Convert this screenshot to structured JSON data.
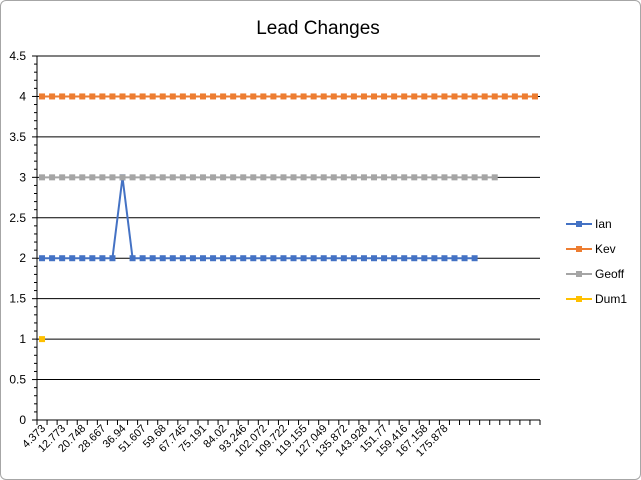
{
  "chart_data": {
    "type": "line",
    "title": "Lead Changes",
    "xlabel": "",
    "ylabel": "",
    "ylim": [
      0,
      4.5
    ],
    "yticks": [
      "0",
      "0.5",
      "1",
      "1.5",
      "2",
      "2.5",
      "3",
      "3.5",
      "4",
      "4.5"
    ],
    "grid": true,
    "legend_position": "right",
    "category_count": 50,
    "x_tick_labels": [
      {
        "index": 0,
        "label": "4.373"
      },
      {
        "index": 2,
        "label": "12.773"
      },
      {
        "index": 4,
        "label": "20.748"
      },
      {
        "index": 6,
        "label": "28.667"
      },
      {
        "index": 8,
        "label": "36.94"
      },
      {
        "index": 10,
        "label": "51.607"
      },
      {
        "index": 12,
        "label": "59.68"
      },
      {
        "index": 14,
        "label": "67.745"
      },
      {
        "index": 16,
        "label": "75.191"
      },
      {
        "index": 18,
        "label": "84.02"
      },
      {
        "index": 20,
        "label": "93.246"
      },
      {
        "index": 22,
        "label": "102.072"
      },
      {
        "index": 24,
        "label": "109.722"
      },
      {
        "index": 26,
        "label": "119.155"
      },
      {
        "index": 28,
        "label": "127.049"
      },
      {
        "index": 30,
        "label": "135.872"
      },
      {
        "index": 32,
        "label": "143.928"
      },
      {
        "index": 34,
        "label": "151.77"
      },
      {
        "index": 36,
        "label": "159.416"
      },
      {
        "index": 38,
        "label": "167.158"
      },
      {
        "index": 40,
        "label": "175.878"
      }
    ],
    "series": [
      {
        "name": "Ian",
        "color": "#4472c4",
        "values": [
          2,
          2,
          2,
          2,
          2,
          2,
          2,
          2,
          3,
          2,
          2,
          2,
          2,
          2,
          2,
          2,
          2,
          2,
          2,
          2,
          2,
          2,
          2,
          2,
          2,
          2,
          2,
          2,
          2,
          2,
          2,
          2,
          2,
          2,
          2,
          2,
          2,
          2,
          2,
          2,
          2,
          2,
          2,
          2
        ]
      },
      {
        "name": "Kev",
        "color": "#ed7d31",
        "values": [
          4,
          4,
          4,
          4,
          4,
          4,
          4,
          4,
          4,
          4,
          4,
          4,
          4,
          4,
          4,
          4,
          4,
          4,
          4,
          4,
          4,
          4,
          4,
          4,
          4,
          4,
          4,
          4,
          4,
          4,
          4,
          4,
          4,
          4,
          4,
          4,
          4,
          4,
          4,
          4,
          4,
          4,
          4,
          4,
          4,
          4,
          4,
          4,
          4,
          4
        ]
      },
      {
        "name": "Geoff",
        "color": "#a5a5a5",
        "values": [
          3,
          3,
          3,
          3,
          3,
          3,
          3,
          3,
          3,
          3,
          3,
          3,
          3,
          3,
          3,
          3,
          3,
          3,
          3,
          3,
          3,
          3,
          3,
          3,
          3,
          3,
          3,
          3,
          3,
          3,
          3,
          3,
          3,
          3,
          3,
          3,
          3,
          3,
          3,
          3,
          3,
          3,
          3,
          3,
          3,
          3
        ]
      },
      {
        "name": "Dum1",
        "color": "#ffc000",
        "values": [
          1
        ]
      }
    ]
  }
}
